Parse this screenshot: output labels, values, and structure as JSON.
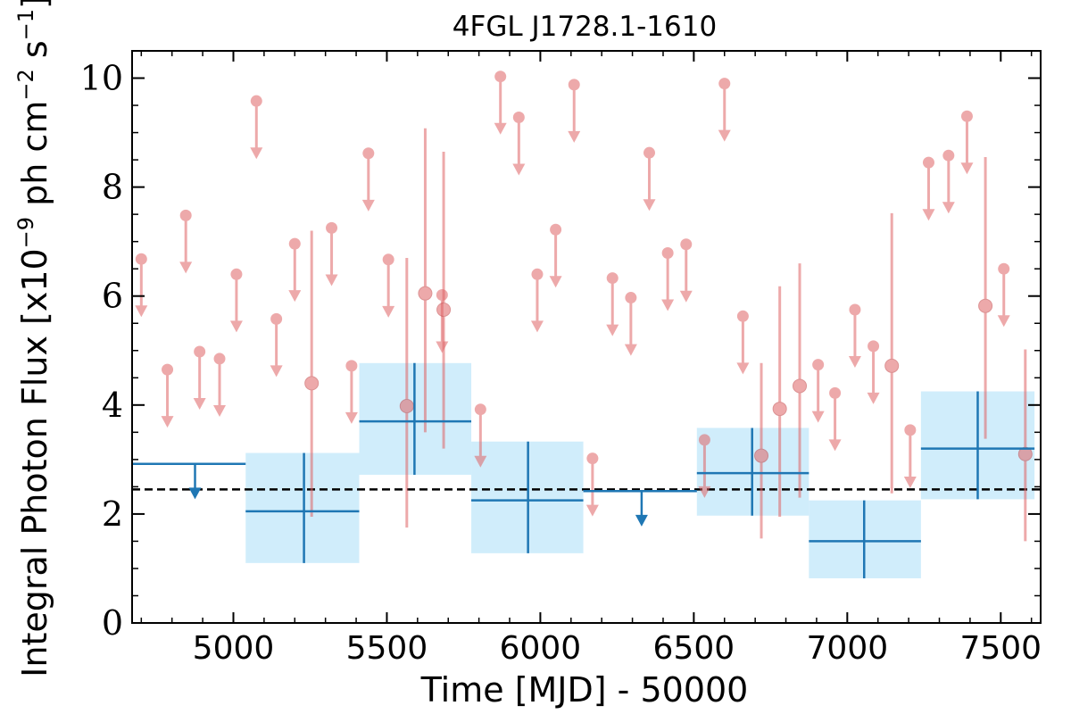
{
  "chart_data": {
    "type": "scatter",
    "title": "4FGL J1728.1-1610",
    "xlabel": "Time [MJD] - 50000",
    "ylabel": "Integral Photon Flux [x10",
    "ylabel_exp": "−9",
    "ylabel_mid": " ph cm",
    "ylabel_exp2": "−2",
    "ylabel_tail": " s",
    "ylabel_exp3": "−1",
    "ylabel_close": "]",
    "xlim": [
      4670,
      7630
    ],
    "ylim": [
      0,
      10.5
    ],
    "x_ticks": [
      5000,
      5500,
      6000,
      6500,
      7000,
      7500
    ],
    "x_tick_labels": [
      "5000",
      "5500",
      "6000",
      "6500",
      "7000",
      "7500"
    ],
    "y_ticks": [
      0,
      2,
      4,
      6,
      8,
      10
    ],
    "y_tick_labels": [
      "0",
      "2",
      "4",
      "6",
      "8",
      "10"
    ],
    "reference_line": 2.45,
    "colors": {
      "fine": "#e06466",
      "coarse": "#1f77b4",
      "coarse_band": "#d0edfb",
      "reference": "#000000"
    },
    "series": [
      {
        "kind": "fine_upper_limits",
        "points": [
          {
            "x": 4700,
            "y": 6.68
          },
          {
            "x": 4785,
            "y": 4.65
          },
          {
            "x": 4845,
            "y": 7.48
          },
          {
            "x": 4890,
            "y": 4.98
          },
          {
            "x": 4955,
            "y": 4.85
          },
          {
            "x": 5010,
            "y": 6.4
          },
          {
            "x": 5075,
            "y": 9.58
          },
          {
            "x": 5140,
            "y": 5.58
          },
          {
            "x": 5200,
            "y": 6.96
          },
          {
            "x": 5320,
            "y": 7.25
          },
          {
            "x": 5385,
            "y": 4.72
          },
          {
            "x": 5440,
            "y": 8.62
          },
          {
            "x": 5505,
            "y": 6.67
          },
          {
            "x": 5680,
            "y": 6.02
          },
          {
            "x": 5805,
            "y": 3.92
          },
          {
            "x": 5870,
            "y": 10.03
          },
          {
            "x": 5930,
            "y": 9.28
          },
          {
            "x": 5990,
            "y": 6.4
          },
          {
            "x": 6050,
            "y": 7.22
          },
          {
            "x": 6110,
            "y": 9.88
          },
          {
            "x": 6170,
            "y": 3.02
          },
          {
            "x": 6235,
            "y": 6.33
          },
          {
            "x": 6295,
            "y": 5.97
          },
          {
            "x": 6355,
            "y": 8.63
          },
          {
            "x": 6415,
            "y": 6.79
          },
          {
            "x": 6475,
            "y": 6.95
          },
          {
            "x": 6535,
            "y": 3.36
          },
          {
            "x": 6600,
            "y": 9.9
          },
          {
            "x": 6660,
            "y": 5.63
          },
          {
            "x": 6905,
            "y": 4.74
          },
          {
            "x": 6960,
            "y": 4.22
          },
          {
            "x": 7025,
            "y": 5.75
          },
          {
            "x": 7085,
            "y": 5.08
          },
          {
            "x": 7205,
            "y": 3.54
          },
          {
            "x": 7265,
            "y": 8.45
          },
          {
            "x": 7330,
            "y": 8.58
          },
          {
            "x": 7390,
            "y": 9.3
          },
          {
            "x": 7510,
            "y": 6.5
          }
        ]
      },
      {
        "kind": "fine_detections",
        "points": [
          {
            "x": 5255,
            "y": 4.4,
            "lo": 1.95,
            "hi": 7.2
          },
          {
            "x": 5565,
            "y": 3.98,
            "lo": 1.75,
            "hi": 6.7
          },
          {
            "x": 5625,
            "y": 6.05,
            "lo": 3.5,
            "hi": 9.08
          },
          {
            "x": 5685,
            "y": 5.75,
            "lo": 3.2,
            "hi": 8.65
          },
          {
            "x": 6720,
            "y": 3.07,
            "lo": 1.55,
            "hi": 4.77
          },
          {
            "x": 6780,
            "y": 3.93,
            "lo": 1.95,
            "hi": 6.18
          },
          {
            "x": 6845,
            "y": 4.35,
            "lo": 2.3,
            "hi": 6.6
          },
          {
            "x": 7145,
            "y": 4.72,
            "lo": 2.38,
            "hi": 7.52
          },
          {
            "x": 7450,
            "y": 5.82,
            "lo": 3.38,
            "hi": 8.55
          },
          {
            "x": 7580,
            "y": 3.1,
            "lo": 1.5,
            "hi": 5.02
          }
        ]
      },
      {
        "kind": "coarse_upper_limits",
        "points": [
          {
            "x0": 4670,
            "x1": 5040,
            "y": 2.92,
            "x_arrow": 4875
          },
          {
            "x0": 6140,
            "x1": 6510,
            "y": 2.42,
            "x_arrow": 6330
          }
        ]
      },
      {
        "kind": "coarse_detections",
        "points": [
          {
            "x0": 5040,
            "x1": 5410,
            "xc": 5230,
            "y": 2.05,
            "lo": 1.1,
            "hi": 3.12
          },
          {
            "x0": 5410,
            "x1": 5775,
            "xc": 5590,
            "y": 3.7,
            "lo": 2.72,
            "hi": 4.77
          },
          {
            "x0": 5775,
            "x1": 6140,
            "xc": 5960,
            "y": 2.25,
            "lo": 1.28,
            "hi": 3.33
          },
          {
            "x0": 6510,
            "x1": 6875,
            "xc": 6690,
            "y": 2.75,
            "lo": 1.97,
            "hi": 3.58
          },
          {
            "x0": 6875,
            "x1": 7240,
            "xc": 7055,
            "y": 1.5,
            "lo": 0.82,
            "hi": 2.25
          },
          {
            "x0": 7240,
            "x1": 7610,
            "xc": 7425,
            "y": 3.2,
            "lo": 2.27,
            "hi": 4.25
          }
        ]
      }
    ]
  }
}
